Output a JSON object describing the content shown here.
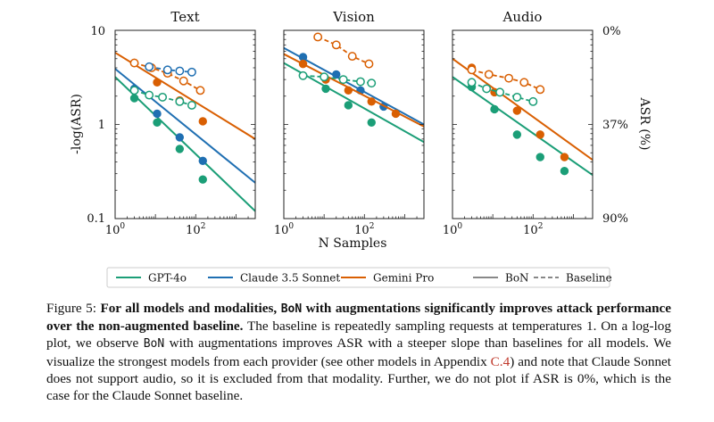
{
  "figure": {
    "ylabel_left": "-log(ASR)",
    "ylabel_right": "ASR (%)",
    "xlabel": "N Samples",
    "y_ticks": [
      "10",
      "1",
      "0.1"
    ],
    "right_ticks": [
      "0%",
      "37%",
      "90%"
    ],
    "x_ticks": [
      {
        "base": "10",
        "exp": "0"
      },
      {
        "base": "10",
        "exp": "2"
      }
    ],
    "legend": [
      {
        "label": "GPT-4o",
        "color": "#1b9e77",
        "style": "solid"
      },
      {
        "label": "Claude 3.5 Sonnet",
        "color": "#1f6fb2",
        "style": "solid"
      },
      {
        "label": "Gemini Pro",
        "color": "#d95f02",
        "style": "solid"
      },
      {
        "label": "BoN",
        "color": "#888888",
        "style": "solid"
      },
      {
        "label": "Baseline",
        "color": "#888888",
        "style": "dashed"
      }
    ]
  },
  "chart_data": [
    {
      "type": "line",
      "title": "Text",
      "xlabel": "",
      "ylabel": "-log(ASR)",
      "x_scale": "log",
      "y_scale": "log",
      "xlim": [
        1,
        3000
      ],
      "ylim": [
        0.1,
        10
      ],
      "series": [
        {
          "name": "GPT-4o",
          "color": "#1b9e77",
          "kind": "bon",
          "points": [
            [
              3,
              1.9
            ],
            [
              11,
              1.05
            ],
            [
              40,
              0.55
            ],
            [
              150,
              0.26
            ]
          ],
          "fit": [
            [
              1,
              3.2
            ],
            [
              3000,
              0.12
            ]
          ]
        },
        {
          "name": "Claude 3.5 Sonnet",
          "color": "#1f6fb2",
          "kind": "bon",
          "points": [
            [
              3,
              2.4
            ],
            [
              11,
              1.3
            ],
            [
              40,
              0.73
            ],
            [
              150,
              0.41
            ]
          ],
          "fit": [
            [
              1,
              3.9
            ],
            [
              3000,
              0.24
            ]
          ]
        },
        {
          "name": "Gemini Pro",
          "color": "#d95f02",
          "kind": "bon",
          "points": [
            [
              3,
              4.5
            ],
            [
              11,
              2.8
            ],
            [
              40,
              1.8
            ],
            [
              150,
              1.08
            ]
          ],
          "fit": [
            [
              1,
              5.8
            ],
            [
              3000,
              0.7
            ]
          ]
        },
        {
          "name": "GPT-4o",
          "color": "#1b9e77",
          "kind": "baseline",
          "points": [
            [
              3,
              2.3
            ],
            [
              7,
              2.05
            ],
            [
              15,
              1.95
            ],
            [
              40,
              1.75
            ],
            [
              80,
              1.6
            ]
          ]
        },
        {
          "name": "Gemini Pro",
          "color": "#d95f02",
          "kind": "baseline",
          "points": [
            [
              3,
              4.5
            ],
            [
              8,
              4.0
            ],
            [
              20,
              3.5
            ],
            [
              50,
              2.9
            ],
            [
              130,
              2.3
            ]
          ]
        },
        {
          "name": "Claude 3.5 Sonnet",
          "color": "#1f6fb2",
          "kind": "baseline",
          "points": [
            [
              7,
              4.1
            ],
            [
              20,
              3.8
            ],
            [
              40,
              3.7
            ],
            [
              80,
              3.6
            ]
          ]
        }
      ]
    },
    {
      "type": "line",
      "title": "Vision",
      "xlabel": "",
      "ylabel": "",
      "x_scale": "log",
      "y_scale": "log",
      "xlim": [
        1,
        3000
      ],
      "ylim": [
        0.1,
        10
      ],
      "series": [
        {
          "name": "GPT-4o",
          "color": "#1b9e77",
          "kind": "bon",
          "points": [
            [
              3,
              3.3
            ],
            [
              11,
              2.4
            ],
            [
              40,
              1.6
            ],
            [
              150,
              1.05
            ]
          ],
          "fit": [
            [
              1,
              4.5
            ],
            [
              3000,
              0.65
            ]
          ]
        },
        {
          "name": "Claude 3.5 Sonnet",
          "color": "#1f6fb2",
          "kind": "bon",
          "points": [
            [
              3,
              5.2
            ],
            [
              20,
              3.4
            ],
            [
              80,
              2.3
            ],
            [
              300,
              1.55
            ]
          ],
          "fit": [
            [
              1,
              6.5
            ],
            [
              3000,
              1.0
            ]
          ]
        },
        {
          "name": "Gemini Pro",
          "color": "#d95f02",
          "kind": "bon",
          "points": [
            [
              3,
              4.4
            ],
            [
              11,
              3.0
            ],
            [
              40,
              2.3
            ],
            [
              150,
              1.75
            ],
            [
              600,
              1.3
            ]
          ],
          "fit": [
            [
              1,
              5.6
            ],
            [
              3000,
              0.95
            ]
          ]
        },
        {
          "name": "GPT-4o",
          "color": "#1b9e77",
          "kind": "baseline",
          "points": [
            [
              3,
              3.3
            ],
            [
              10,
              3.2
            ],
            [
              30,
              3.0
            ],
            [
              80,
              2.85
            ],
            [
              150,
              2.75
            ]
          ]
        },
        {
          "name": "Gemini Pro",
          "color": "#d95f02",
          "kind": "baseline",
          "points": [
            [
              7,
              8.5
            ],
            [
              20,
              7.0
            ],
            [
              50,
              5.3
            ],
            [
              130,
              4.4
            ]
          ]
        }
      ]
    },
    {
      "type": "line",
      "title": "Audio",
      "xlabel": "",
      "ylabel": "",
      "x_scale": "log",
      "y_scale": "log",
      "xlim": [
        1,
        3000
      ],
      "ylim": [
        0.1,
        10
      ],
      "series": [
        {
          "name": "GPT-4o",
          "color": "#1b9e77",
          "kind": "bon",
          "points": [
            [
              3,
              2.5
            ],
            [
              11,
              1.45
            ],
            [
              40,
              0.78
            ],
            [
              150,
              0.45
            ],
            [
              600,
              0.32
            ]
          ],
          "fit": [
            [
              1,
              3.2
            ],
            [
              3000,
              0.29
            ]
          ]
        },
        {
          "name": "Gemini Pro",
          "color": "#d95f02",
          "kind": "bon",
          "points": [
            [
              3,
              4.0
            ],
            [
              11,
              2.2
            ],
            [
              40,
              1.4
            ],
            [
              150,
              0.78
            ],
            [
              600,
              0.45
            ]
          ],
          "fit": [
            [
              1,
              5.0
            ],
            [
              3000,
              0.42
            ]
          ]
        },
        {
          "name": "GPT-4o",
          "color": "#1b9e77",
          "kind": "baseline",
          "points": [
            [
              3,
              2.8
            ],
            [
              7,
              2.4
            ],
            [
              15,
              2.2
            ],
            [
              40,
              1.95
            ],
            [
              100,
              1.75
            ]
          ]
        },
        {
          "name": "Gemini Pro",
          "color": "#d95f02",
          "kind": "baseline",
          "points": [
            [
              3,
              3.8
            ],
            [
              8,
              3.4
            ],
            [
              25,
              3.1
            ],
            [
              60,
              2.8
            ],
            [
              150,
              2.35
            ]
          ]
        }
      ]
    }
  ],
  "caption": {
    "label": "Figure 5:",
    "bold_1": "For all models and modalities,",
    "bold_code": "BoN",
    "bold_2": "with augmentations significantly improves attack performance over the non-augmented baseline.",
    "text_1": "The baseline is repeatedly sampling requests at temperatures 1. On a log-log plot, we observe",
    "code_2": "BoN",
    "text_2": "with augmentations improves ASR with a steeper slope than baselines for all models. We visualize the strongest models from each provider (see other models in Appendix",
    "ref": "C.4",
    "text_3": ") and note that Claude Sonnet does not support audio, so it is excluded from that modality. Further, we do not plot if ASR is 0%, which is the case for the Claude Sonnet baseline."
  }
}
